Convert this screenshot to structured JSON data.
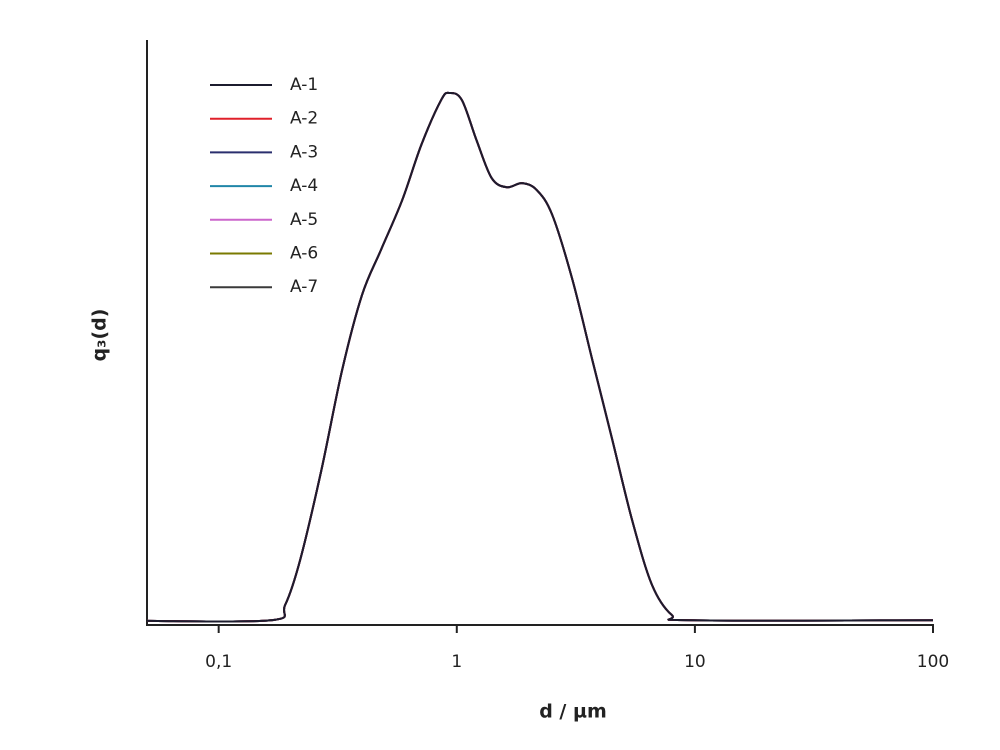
{
  "chart_data": {
    "type": "line",
    "xlabel": "d / µm",
    "ylabel": "q₃(d)",
    "xscale": "log",
    "grid": false,
    "legend": "upper left",
    "xlim": [
      0.05,
      100
    ],
    "ylim": [
      0,
      100
    ],
    "xticks": [
      {
        "value": 0.1,
        "label": "0,1"
      },
      1,
      10,
      100
    ],
    "x": [
      0.05,
      0.166,
      0.19,
      0.22,
      0.27,
      0.33,
      0.4,
      0.48,
      0.59,
      0.71,
      0.86,
      0.93,
      1.05,
      1.21,
      1.4,
      1.62,
      1.88,
      2.17,
      2.52,
      3.06,
      3.71,
      4.5,
      5.45,
      6.6,
      8,
      9.8,
      100
    ],
    "series": [
      {
        "name": "A-1",
        "color": "#1c1c2e",
        "values": [
          0.2,
          0.3,
          2.9,
          10.7,
          26.1,
          43.3,
          56.2,
          63.9,
          72.5,
          82,
          89.7,
          90.9,
          89.7,
          82.8,
          76.3,
          74.7,
          75.4,
          74.2,
          69.9,
          58.8,
          45,
          31.3,
          17.5,
          6.4,
          1.2,
          0.3,
          0.3
        ]
      },
      {
        "name": "A-2",
        "color": "#e0202a",
        "values": [
          0.2,
          0.3,
          2.9,
          10.7,
          26.1,
          43.3,
          56.2,
          63.9,
          72.5,
          82,
          89.7,
          90.9,
          89.7,
          82.8,
          76.3,
          74.7,
          75.4,
          74.2,
          69.9,
          58.8,
          45,
          31.3,
          17.5,
          6.4,
          1.2,
          0.3,
          0.3
        ]
      },
      {
        "name": "A-3",
        "color": "#2a2f6e",
        "values": [
          0.2,
          0.3,
          2.9,
          10.7,
          26.1,
          43.3,
          56.2,
          63.9,
          72.5,
          82,
          89.7,
          90.9,
          89.7,
          82.8,
          76.3,
          74.7,
          75.4,
          74.2,
          69.9,
          58.8,
          45,
          31.3,
          17.5,
          6.4,
          1.2,
          0.3,
          0.3
        ]
      },
      {
        "name": "A-4",
        "color": "#2086a8",
        "values": [
          0.2,
          0.3,
          2.9,
          10.7,
          26.1,
          43.3,
          56.2,
          63.9,
          72.5,
          82,
          89.7,
          90.9,
          89.7,
          82.8,
          76.3,
          74.7,
          75.4,
          74.2,
          69.9,
          58.8,
          45,
          31.3,
          17.5,
          6.4,
          1.2,
          0.3,
          0.3
        ]
      },
      {
        "name": "A-5",
        "color": "#cc66cc",
        "values": [
          0.2,
          0.3,
          2.9,
          10.7,
          26.1,
          43.3,
          56.2,
          63.9,
          72.5,
          82,
          89.7,
          90.9,
          89.7,
          82.8,
          76.3,
          74.7,
          75.4,
          74.2,
          69.9,
          58.8,
          45,
          31.3,
          17.5,
          6.4,
          1.2,
          0.3,
          0.3
        ]
      },
      {
        "name": "A-6",
        "color": "#7a7a00",
        "values": [
          0.2,
          0.3,
          2.9,
          10.7,
          26.1,
          43.3,
          56.2,
          63.9,
          72.5,
          82,
          89.7,
          90.9,
          89.7,
          82.8,
          76.3,
          74.7,
          75.4,
          74.2,
          69.9,
          58.8,
          45,
          31.3,
          17.5,
          6.4,
          1.2,
          0.3,
          0.3
        ]
      },
      {
        "name": "A-7",
        "color": "#3a3a3a",
        "values": [
          0.2,
          0.3,
          2.9,
          10.7,
          26.1,
          43.3,
          56.2,
          63.9,
          72.5,
          82,
          89.7,
          90.9,
          89.7,
          82.8,
          76.3,
          74.7,
          75.4,
          74.2,
          69.9,
          58.8,
          45,
          31.3,
          17.5,
          6.4,
          1.2,
          0.3,
          0.3
        ]
      }
    ]
  }
}
